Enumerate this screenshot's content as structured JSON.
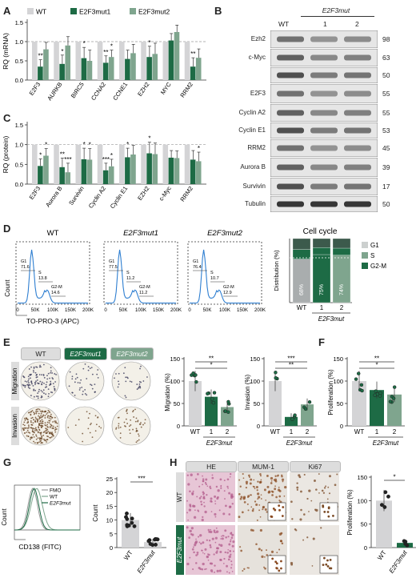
{
  "panels": {
    "A": "A",
    "B": "B",
    "C": "C",
    "D": "D",
    "E": "E",
    "F": "F",
    "G": "G",
    "H": "H"
  },
  "colors": {
    "wt": "#d4d4d6",
    "mut1": "#1d6b45",
    "mut2": "#7fa58e",
    "hist_blue": "#2f7fd1"
  },
  "legend": {
    "wt": "WT",
    "mut1": "E2F3mut1",
    "mut2": "E2F3mut2"
  },
  "panel_A": {
    "ylabel": "RQ (mRNA)",
    "yticks": [
      "0.0",
      "0.5",
      "1.0",
      "1.5"
    ],
    "categories": [
      "E2F3",
      "AURKB",
      "BIRC5",
      "CCNA2",
      "CCNE1",
      "EZH2",
      "MYC",
      "RRM2"
    ],
    "stars_mut1": [
      "**",
      "*",
      "*",
      "**",
      "",
      "*",
      "",
      "**"
    ],
    "stars_mut2": [
      "",
      "",
      "",
      "*",
      "",
      "",
      "",
      ""
    ]
  },
  "panel_C": {
    "ylabel": "RQ (protein)",
    "yticks": [
      "0.0",
      "0.5",
      "1.0",
      "1.5"
    ],
    "categories": [
      "E2F3",
      "Aurora B",
      "Survivin",
      "Cyclin A2",
      "Cyclin E1",
      "EZH2",
      "c-Myc",
      "RRM2"
    ],
    "stars_mut1": [
      "*",
      "**",
      "*",
      "***",
      "*",
      "*",
      "",
      ""
    ],
    "stars_mut2": [
      "*",
      "***",
      "*",
      "*",
      "",
      "",
      "",
      "*"
    ]
  },
  "panel_B": {
    "header": "E2F3mut",
    "lanes": [
      "WT",
      "1",
      "2"
    ],
    "rows": [
      {
        "label": "Ezh2",
        "size": "98"
      },
      {
        "label": "c-Myc",
        "size": "63"
      },
      {
        "label": "",
        "size": "50"
      },
      {
        "label": "E2F3",
        "size": "55"
      },
      {
        "label": "Cyclin A2",
        "size": "55"
      },
      {
        "label": "Cyclin E1",
        "size": "53"
      },
      {
        "label": "RRM2",
        "size": "45"
      },
      {
        "label": "Aurora B",
        "size": "39"
      },
      {
        "label": "Survivin",
        "size": "17"
      },
      {
        "label": "Tubulin",
        "size": "50"
      }
    ]
  },
  "panel_D": {
    "titles": [
      "WT",
      "E2F3mut1",
      "E2F3mut2"
    ],
    "gates": [
      {
        "g1": "G1\n71.6",
        "s": "S\n13.8",
        "g2m": "G2-M\n14.6"
      },
      {
        "g1": "G1\n77.5",
        "s": "S\n11.2",
        "g2m": "G2-M\n11.2"
      },
      {
        "g1": "G1\n76.4",
        "s": "S\n10.7",
        "g2m": "G2-M\n12.9"
      }
    ],
    "xticks": [
      "0",
      "50K",
      "100K",
      "150K",
      "200K"
    ],
    "xlabel": "TO-PRO-3 (APC)",
    "ylabel": "Count",
    "cc_title": "Cell cycle",
    "cc_ylabel": "Distribution (%)",
    "cc_pcts": [
      "68%",
      "75%",
      "74%"
    ],
    "cc_xcats": [
      "WT",
      "1",
      "2"
    ],
    "cc_group": "E2F3mut",
    "cc_legend": [
      "G1",
      "S",
      "G2-M"
    ]
  },
  "panel_E": {
    "col_headers": [
      "WT",
      "E2F3mut1",
      "E2F3mut2"
    ],
    "row_labels": [
      "Migration",
      "Invasion"
    ],
    "migration": {
      "ylabel": "Migration (%)",
      "yticks": [
        "0",
        "50",
        "100",
        "150"
      ],
      "xcats": [
        "WT",
        "1",
        "2"
      ],
      "group": "E2F3mut",
      "stars": [
        "**",
        "*"
      ]
    },
    "invasion": {
      "ylabel": "Invasion (%)",
      "yticks": [
        "0",
        "50",
        "100",
        "150"
      ],
      "xcats": [
        "WT",
        "1",
        "2"
      ],
      "group": "E2F3mut",
      "stars": [
        "***",
        "**"
      ]
    }
  },
  "panel_F": {
    "ylabel": "Proliferation (%)",
    "yticks": [
      "0",
      "50",
      "100",
      "150"
    ],
    "xcats": [
      "WT",
      "1",
      "2"
    ],
    "group": "E2F3mut",
    "stars": [
      "**",
      "*"
    ]
  },
  "panel_G": {
    "legend": [
      "FMO",
      "WT",
      "E2F3mut"
    ],
    "xlabel": "CD138 (FITC)",
    "ylabel": "Count",
    "bar_ylabel": "CD138+ cells (%)",
    "yticks": [
      "0",
      "5",
      "10",
      "15",
      "20",
      "25"
    ],
    "xcats": [
      "WT",
      "E2F3mut"
    ],
    "stars": "***"
  },
  "panel_H": {
    "col_headers": [
      "HE",
      "MUM-1",
      "Ki67"
    ],
    "row_labels": [
      "WT",
      "E2F3mut"
    ],
    "ylabel": "Proliferation (%)",
    "yticks": [
      "0",
      "50",
      "100",
      "150"
    ],
    "xcats": [
      "WT",
      "E2F3mut"
    ],
    "stars": "*"
  },
  "chart_data": [
    {
      "type": "bar",
      "title": "",
      "ylabel": "RQ (mRNA)",
      "ylim": [
        0,
        1.5
      ],
      "categories": [
        "E2F3",
        "AURKB",
        "BIRC5",
        "CCNA2",
        "CCNE1",
        "EZH2",
        "MYC",
        "RRM2"
      ],
      "series": [
        {
          "name": "WT",
          "values": [
            1,
            1,
            1,
            1,
            1,
            1,
            1,
            1
          ]
        },
        {
          "name": "E2F3mut1",
          "values": [
            0.35,
            0.42,
            0.57,
            0.45,
            0.55,
            0.6,
            1.03,
            0.35
          ]
        },
        {
          "name": "E2F3mut2",
          "values": [
            0.8,
            0.9,
            0.5,
            0.6,
            0.7,
            0.68,
            1.25,
            0.58
          ]
        }
      ]
    },
    {
      "type": "bar",
      "title": "",
      "ylabel": "RQ (protein)",
      "ylim": [
        0,
        1.5
      ],
      "categories": [
        "E2F3",
        "Aurora B",
        "Survivin",
        "Cyclin A2",
        "Cyclin E1",
        "EZH2",
        "c-Myc",
        "RRM2"
      ],
      "series": [
        {
          "name": "WT",
          "values": [
            1,
            1,
            1,
            1,
            1,
            1,
            1,
            1
          ]
        },
        {
          "name": "E2F3mut1",
          "values": [
            0.46,
            0.43,
            0.63,
            0.35,
            0.68,
            0.78,
            0.67,
            0.62
          ]
        },
        {
          "name": "E2F3mut2",
          "values": [
            0.72,
            0.3,
            0.62,
            0.45,
            0.75,
            0.76,
            0.66,
            0.58
          ]
        }
      ]
    },
    {
      "type": "bar",
      "title": "Cell cycle",
      "ylabel": "Distribution (%)",
      "ylim": [
        0,
        100
      ],
      "categories": [
        "WT",
        "1",
        "2"
      ],
      "series": [
        {
          "name": "G1",
          "values": [
            68,
            75,
            74
          ]
        },
        {
          "name": "S",
          "values": [
            15,
            11,
            11
          ]
        },
        {
          "name": "G2-M",
          "values": [
            17,
            14,
            15
          ]
        }
      ]
    },
    {
      "type": "bar",
      "ylabel": "Migration (%)",
      "ylim": [
        0,
        150
      ],
      "categories": [
        "WT",
        "1",
        "2"
      ],
      "values": [
        100,
        65,
        42
      ]
    },
    {
      "type": "bar",
      "ylabel": "Invasion (%)",
      "ylim": [
        0,
        150
      ],
      "categories": [
        "WT",
        "1",
        "2"
      ],
      "values": [
        100,
        20,
        48
      ]
    },
    {
      "type": "bar",
      "ylabel": "Proliferation (%)",
      "ylim": [
        0,
        150
      ],
      "categories": [
        "WT",
        "1",
        "2"
      ],
      "values": [
        100,
        80,
        70
      ]
    },
    {
      "type": "bar",
      "ylabel": "CD138+ cells (%)",
      "ylim": [
        0,
        25
      ],
      "categories": [
        "WT",
        "E2F3mut"
      ],
      "values": [
        10,
        2
      ]
    },
    {
      "type": "bar",
      "ylabel": "Proliferation (%)",
      "ylim": [
        0,
        150
      ],
      "categories": [
        "WT",
        "E2F3mut"
      ],
      "values": [
        100,
        10
      ]
    }
  ]
}
